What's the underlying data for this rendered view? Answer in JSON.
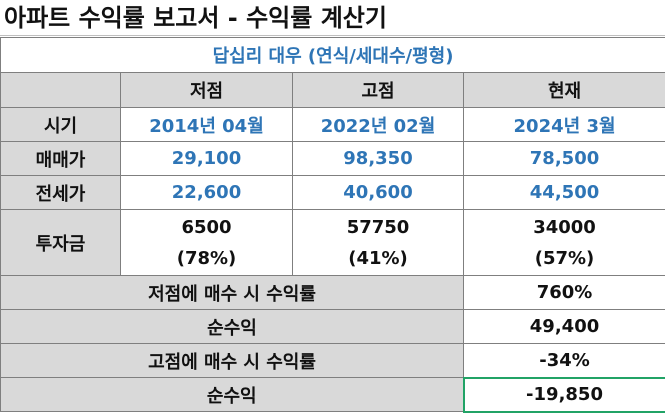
{
  "title": "아파트 수익률 보고서 - 수익률 계산기",
  "subtitle": "답십리 대우 (연식/세대수/평형)",
  "columns": [
    "저점",
    "고점",
    "현재"
  ],
  "rows": [
    {
      "label": "시기",
      "values": [
        "2014년 04월",
        "2022년 02월",
        "2024년 3월"
      ]
    },
    {
      "label": "매매가",
      "values": [
        "29,100",
        "98,350",
        "78,500"
      ]
    },
    {
      "label": "전세가",
      "values": [
        "22,600",
        "40,600",
        "44,500"
      ]
    }
  ],
  "investment": {
    "label": "투자금",
    "amounts": [
      "6500",
      "57750",
      "34000"
    ],
    "ratios": [
      "(78%)",
      "(41%)",
      "(57%)"
    ]
  },
  "summary": [
    {
      "label": "저점에 매수 시 수익률",
      "value": "760%"
    },
    {
      "label": "순수익",
      "value": "49,400"
    },
    {
      "label": "고점에 매수 시 수익률",
      "value": "-34%"
    },
    {
      "label": "순수익",
      "value": "-19,850"
    }
  ],
  "colors": {
    "accent_blue": "#2e75b6",
    "header_gray": "#d9d9d9",
    "selection_green": "#21a366"
  }
}
